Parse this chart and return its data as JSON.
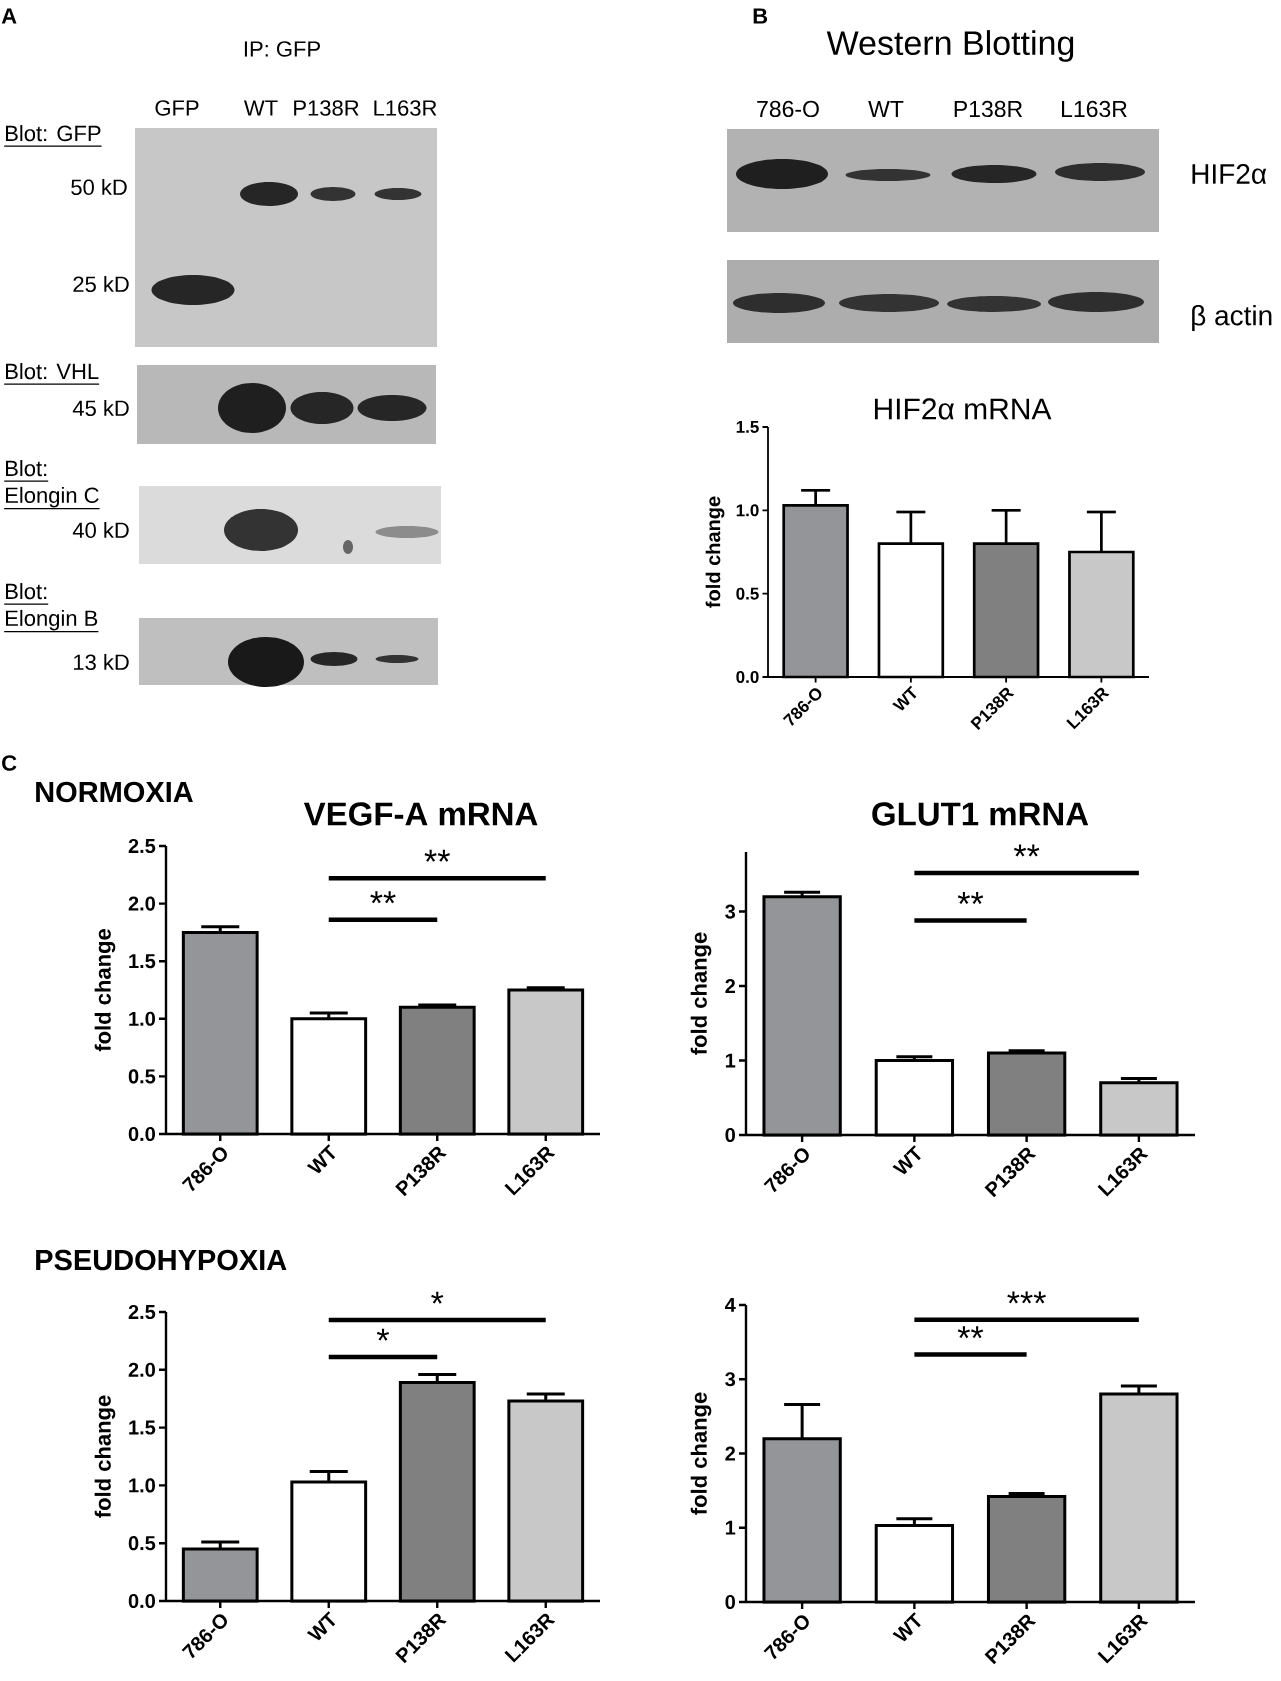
{
  "chart_data": [
    {
      "type": "other",
      "title": "IP: GFP",
      "categories": [
        "GFP",
        "WT",
        "P138R",
        "L163R"
      ],
      "annotations": [
        "A",
        "Blot: GFP",
        "50 kD",
        "25 kD",
        "Blot: VHL",
        "45 kD",
        "Blot: Elongin C",
        "40 kD",
        "Blot: Elongin B",
        "13 kD"
      ]
    },
    {
      "type": "other",
      "title": "Western Blotting",
      "categories": [
        "786-O",
        "WT",
        "P138R",
        "L163R"
      ],
      "annotations": [
        "B",
        "HIF2α",
        "β actin"
      ]
    },
    {
      "type": "bar",
      "title": "HIF2α mRNA",
      "ylabel": "fold change",
      "categories": [
        "786-O",
        "WT",
        "P138R",
        "L163R"
      ],
      "values": [
        1.03,
        0.8,
        0.8,
        0.75
      ],
      "colors": [
        "#949598",
        "#ffffff",
        "#808080",
        "#c8c8c8"
      ],
      "errors": [
        [
          1.03,
          1.12
        ],
        [
          0.8,
          0.99
        ],
        [
          0.8,
          1.0
        ],
        [
          0.75,
          0.99
        ]
      ],
      "ylim": [
        0,
        1.5
      ],
      "yticks": [
        {
          "value": 0,
          "label": "0.0"
        },
        0.5,
        {
          "value": 1,
          "label": "1.0"
        },
        1.5
      ]
    },
    {
      "type": "bar",
      "title": "VEGF-A mRNA",
      "subtitle": "NORMOXIA",
      "ylabel": "fold change",
      "categories": [
        "786-O",
        "WT",
        "P138R",
        "L163R"
      ],
      "values": [
        1.75,
        1.0,
        1.1,
        1.25
      ],
      "colors": [
        "#949598",
        "#ffffff",
        "#808080",
        "#c8c8c8"
      ],
      "errors": [
        [
          1.75,
          1.8
        ],
        [
          1.0,
          1.05
        ],
        [
          1.1,
          1.12
        ],
        [
          1.25,
          1.27
        ]
      ],
      "ylim": [
        0,
        2.5
      ],
      "yticks": [
        {
          "value": 0,
          "label": "0.0"
        },
        0.5,
        {
          "value": 1,
          "label": "1.0"
        },
        1.5,
        {
          "value": 2,
          "label": "2.0"
        },
        2.5
      ],
      "annotations": [
        "C",
        "**",
        "**"
      ]
    },
    {
      "type": "bar",
      "title": "GLUT1 mRNA",
      "ylabel": "fold change",
      "categories": [
        "786-O",
        "WT",
        "P138R",
        "L163R"
      ],
      "values": [
        3.2,
        1.0,
        1.1,
        0.7
      ],
      "colors": [
        "#949598",
        "#ffffff",
        "#808080",
        "#c8c8c8"
      ],
      "errors": [
        [
          3.2,
          3.26
        ],
        [
          1.0,
          1.05
        ],
        [
          1.1,
          1.13
        ],
        [
          0.7,
          0.76
        ]
      ],
      "ylim": [
        0,
        3.8
      ],
      "yticks": [
        0,
        1,
        2,
        3
      ],
      "annotations": [
        "**",
        "**"
      ]
    },
    {
      "type": "bar",
      "subtitle": "PSEUDOHYPOXIA",
      "ylabel": "fold change",
      "categories": [
        "786-O",
        "WT",
        "P138R",
        "L163R"
      ],
      "values": [
        0.45,
        1.03,
        1.89,
        1.73
      ],
      "colors": [
        "#949598",
        "#ffffff",
        "#808080",
        "#c8c8c8"
      ],
      "errors": [
        [
          0.45,
          0.51
        ],
        [
          1.03,
          1.12
        ],
        [
          1.89,
          1.96
        ],
        [
          1.73,
          1.79
        ]
      ],
      "ylim": [
        0,
        2.5
      ],
      "yticks": [
        {
          "value": 0,
          "label": "0.0"
        },
        0.5,
        {
          "value": 1,
          "label": "1.0"
        },
        1.5,
        {
          "value": 2,
          "label": "2.0"
        },
        2.5
      ],
      "annotations": [
        "*",
        "*"
      ]
    },
    {
      "type": "bar",
      "ylabel": "fold change",
      "categories": [
        "786-O",
        "WT",
        "P138R",
        "L163R"
      ],
      "values": [
        2.2,
        1.03,
        1.42,
        2.8
      ],
      "colors": [
        "#949598",
        "#ffffff",
        "#808080",
        "#c8c8c8"
      ],
      "errors": [
        [
          2.2,
          2.66
        ],
        [
          1.03,
          1.12
        ],
        [
          1.42,
          1.46
        ],
        [
          2.8,
          2.91
        ]
      ],
      "ylim": [
        0,
        4
      ],
      "yticks": [
        0,
        1,
        2,
        3,
        4
      ],
      "annotations": [
        "***",
        "**"
      ]
    }
  ]
}
